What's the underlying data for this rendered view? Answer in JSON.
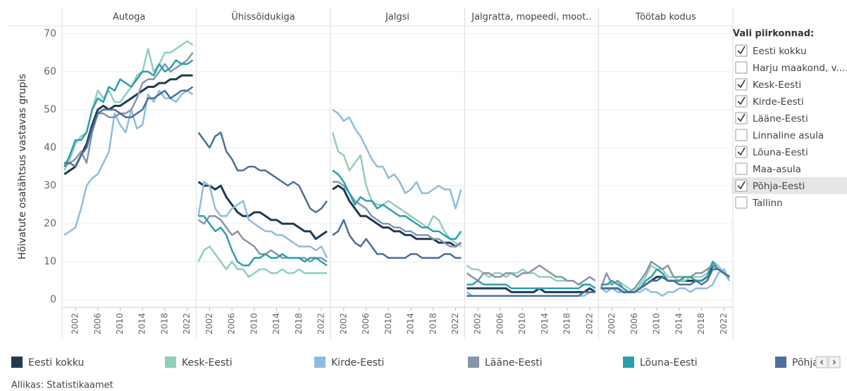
{
  "chart_data": [
    {
      "type": "line",
      "title": "Autoga",
      "ylabel": "Hõivatute osatähtsus vastavas grupis",
      "x": [
        2000,
        2001,
        2002,
        2003,
        2004,
        2005,
        2006,
        2007,
        2008,
        2009,
        2010,
        2011,
        2012,
        2013,
        2014,
        2015,
        2016,
        2017,
        2018,
        2019,
        2020,
        2021,
        2022,
        2023
      ],
      "xlim": [
        1999.6,
        2023.6
      ],
      "xticks": [
        2002,
        2006,
        2010,
        2014,
        2018,
        2022
      ],
      "ylim": [
        -2,
        72
      ],
      "yticks": [
        0,
        10,
        20,
        30,
        40,
        50,
        60,
        70
      ],
      "grid": true,
      "series": [
        {
          "name": "Eesti kokku",
          "color": "#1f3a52",
          "values": [
            33,
            34,
            35,
            38,
            41,
            46,
            50,
            51,
            50,
            51,
            51,
            52,
            53,
            54,
            55,
            56,
            56,
            57,
            57,
            58,
            58,
            59,
            59,
            59
          ]
        },
        {
          "name": "Kesk-Eesti",
          "color": "#8fd0b8",
          "values": [
            34,
            37,
            41,
            43,
            44,
            50,
            55,
            53,
            55,
            52,
            52,
            54,
            56,
            59,
            60,
            66,
            60,
            62,
            65,
            65,
            66,
            67,
            68,
            67
          ]
        },
        {
          "name": "Kirde-Eesti",
          "color": "#8fbcde",
          "values": [
            17,
            18,
            19,
            24,
            30,
            32,
            33,
            36,
            39,
            49,
            46,
            44,
            50,
            45,
            46,
            54,
            52,
            55,
            53,
            53,
            52,
            54,
            55,
            54
          ]
        },
        {
          "name": "Lääne-Eesti",
          "color": "#8596a8",
          "values": [
            35,
            36,
            37,
            39,
            36,
            44,
            49,
            49,
            48,
            48,
            49,
            49,
            50,
            53,
            57,
            58,
            58,
            60,
            62,
            60,
            61,
            62,
            63,
            65
          ]
        },
        {
          "name": "Lõuna-Eesti",
          "color": "#2a9fae",
          "values": [
            35,
            38,
            42,
            42,
            44,
            50,
            53,
            52,
            56,
            55,
            58,
            57,
            56,
            58,
            60,
            60,
            59,
            62,
            60,
            61,
            63,
            62,
            62,
            63
          ]
        },
        {
          "name": "Põhja-Eesti",
          "color": "#4a6f9c",
          "values": [
            36,
            36,
            35,
            38,
            40,
            45,
            49,
            50,
            50,
            50,
            49,
            48,
            48,
            49,
            50,
            53,
            53,
            54,
            55,
            53,
            54,
            55,
            55,
            56
          ]
        }
      ]
    },
    {
      "type": "line",
      "title": "Ühissõidukiga",
      "x": [
        2000,
        2001,
        2002,
        2003,
        2004,
        2005,
        2006,
        2007,
        2008,
        2009,
        2010,
        2011,
        2012,
        2013,
        2014,
        2015,
        2016,
        2017,
        2018,
        2019,
        2020,
        2021,
        2022,
        2023
      ],
      "xlim": [
        1999.6,
        2023.6
      ],
      "xticks": [
        2002,
        2006,
        2010,
        2014,
        2018,
        2022
      ],
      "ylim": [
        -2,
        72
      ],
      "yticks": [
        0,
        10,
        20,
        30,
        40,
        50,
        60,
        70
      ],
      "grid": true,
      "series": [
        {
          "name": "Eesti kokku",
          "color": "#1f3a52",
          "values": [
            31,
            30,
            30,
            29,
            30,
            27,
            25,
            23,
            22,
            22,
            23,
            23,
            22,
            21,
            21,
            20,
            20,
            20,
            19,
            18,
            18,
            16,
            17,
            18
          ]
        },
        {
          "name": "Kesk-Eesti",
          "color": "#8fd0b8",
          "values": [
            10,
            13,
            14,
            12,
            10,
            8,
            10,
            8,
            8,
            6,
            7,
            8,
            8,
            7,
            7,
            8,
            7,
            7,
            8,
            7,
            7,
            7,
            7,
            7
          ]
        },
        {
          "name": "Kirde-Eesti",
          "color": "#8fbcde",
          "values": [
            22,
            31,
            30,
            24,
            22,
            22,
            24,
            25,
            26,
            21,
            20,
            19,
            18,
            18,
            17,
            17,
            16,
            15,
            14,
            14,
            14,
            13,
            14,
            11
          ]
        },
        {
          "name": "Lääne-Eesti",
          "color": "#8596a8",
          "values": [
            21,
            20,
            22,
            22,
            21,
            19,
            17,
            18,
            16,
            15,
            14,
            12,
            12,
            13,
            12,
            11,
            11,
            11,
            11,
            11,
            10,
            11,
            11,
            10
          ]
        },
        {
          "name": "Lõuna-Eesti",
          "color": "#2a9fae",
          "values": [
            22,
            22,
            20,
            18,
            19,
            17,
            13,
            10,
            9,
            9,
            11,
            11,
            12,
            11,
            11,
            12,
            11,
            11,
            11,
            10,
            11,
            11,
            10,
            9
          ]
        },
        {
          "name": "Põhja-Eesti",
          "color": "#4a6f9c",
          "values": [
            44,
            42,
            40,
            43,
            44,
            39,
            37,
            34,
            34,
            35,
            35,
            34,
            34,
            33,
            32,
            31,
            30,
            31,
            30,
            27,
            24,
            23,
            24,
            26
          ]
        }
      ]
    },
    {
      "type": "line",
      "title": "Jalgsi",
      "x": [
        2000,
        2001,
        2002,
        2003,
        2004,
        2005,
        2006,
        2007,
        2008,
        2009,
        2010,
        2011,
        2012,
        2013,
        2014,
        2015,
        2016,
        2017,
        2018,
        2019,
        2020,
        2021,
        2022,
        2023
      ],
      "xlim": [
        1999.6,
        2023.6
      ],
      "xticks": [
        2002,
        2006,
        2010,
        2014,
        2018,
        2022
      ],
      "ylim": [
        -2,
        72
      ],
      "yticks": [
        0,
        10,
        20,
        30,
        40,
        50,
        60,
        70
      ],
      "grid": true,
      "series": [
        {
          "name": "Eesti kokku",
          "color": "#1f3a52",
          "values": [
            29,
            30,
            29,
            26,
            24,
            22,
            22,
            21,
            20,
            19,
            19,
            18,
            18,
            17,
            17,
            16,
            16,
            16,
            16,
            15,
            15,
            15,
            14,
            15
          ]
        },
        {
          "name": "Kesk-Eesti",
          "color": "#8fd0b8",
          "values": [
            44,
            39,
            38,
            34,
            36,
            38,
            30,
            26,
            25,
            25,
            26,
            25,
            24,
            23,
            22,
            21,
            20,
            19,
            22,
            21,
            18,
            16,
            15,
            14
          ]
        },
        {
          "name": "Kirde-Eesti",
          "color": "#8fbcde",
          "values": [
            50,
            49,
            47,
            48,
            45,
            43,
            40,
            37,
            35,
            35,
            32,
            33,
            31,
            28,
            29,
            31,
            28,
            28,
            29,
            30,
            29,
            29,
            24,
            29
          ]
        },
        {
          "name": "Lääne-Eesti",
          "color": "#8596a8",
          "values": [
            31,
            31,
            30,
            28,
            26,
            25,
            24,
            22,
            21,
            20,
            20,
            19,
            19,
            18,
            18,
            17,
            17,
            17,
            16,
            16,
            15,
            14,
            14,
            15
          ]
        },
        {
          "name": "Lõuna-Eesti",
          "color": "#2a9fae",
          "values": [
            34,
            33,
            31,
            28,
            25,
            27,
            26,
            26,
            24,
            25,
            24,
            23,
            22,
            22,
            21,
            20,
            19,
            19,
            18,
            18,
            17,
            16,
            16,
            18
          ]
        },
        {
          "name": "Põhja-Eesti",
          "color": "#4a6f9c",
          "values": [
            17,
            18,
            21,
            17,
            15,
            14,
            16,
            14,
            12,
            12,
            11,
            11,
            11,
            11,
            12,
            12,
            11,
            11,
            11,
            11,
            12,
            12,
            11,
            11
          ]
        }
      ]
    },
    {
      "type": "line",
      "title": "Jalgratta, mopeedi, moot..",
      "x": [
        2000,
        2001,
        2002,
        2003,
        2004,
        2005,
        2006,
        2007,
        2008,
        2009,
        2010,
        2011,
        2012,
        2013,
        2014,
        2015,
        2016,
        2017,
        2018,
        2019,
        2020,
        2021,
        2022,
        2023
      ],
      "xlim": [
        1999.6,
        2023.6
      ],
      "xticks": [
        2002,
        2006,
        2010,
        2014,
        2018,
        2022
      ],
      "ylim": [
        -2,
        72
      ],
      "yticks": [
        0,
        10,
        20,
        30,
        40,
        50,
        60,
        70
      ],
      "grid": true,
      "series": [
        {
          "name": "Eesti kokku",
          "color": "#1f3a52",
          "values": [
            3,
            3,
            3,
            3,
            3,
            3,
            3,
            3,
            2,
            2,
            2,
            2,
            2,
            3,
            2,
            2,
            2,
            2,
            2,
            2,
            2,
            2,
            3,
            2
          ]
        },
        {
          "name": "Kesk-Eesti",
          "color": "#8fd0b8",
          "values": [
            9,
            8,
            8,
            7,
            6,
            7,
            7,
            6,
            7,
            7,
            8,
            7,
            7,
            6,
            6,
            6,
            5,
            5,
            5,
            5,
            4,
            4,
            4,
            3
          ]
        },
        {
          "name": "Kirde-Eesti",
          "color": "#8fbcde",
          "values": [
            2,
            1,
            1,
            1,
            1,
            1,
            1,
            1,
            1,
            1,
            1,
            1,
            1,
            1,
            1,
            1,
            1,
            1,
            1,
            1,
            1,
            1,
            2,
            2
          ]
        },
        {
          "name": "Lääne-Eesti",
          "color": "#8596a8",
          "values": [
            7,
            6,
            5,
            7,
            7,
            6,
            6,
            7,
            7,
            6,
            7,
            7,
            8,
            9,
            8,
            7,
            6,
            6,
            5,
            5,
            4,
            5,
            6,
            5
          ]
        },
        {
          "name": "Lõuna-Eesti",
          "color": "#2a9fae",
          "values": [
            4,
            4,
            5,
            4,
            4,
            4,
            4,
            4,
            3,
            3,
            3,
            3,
            3,
            3,
            3,
            3,
            3,
            3,
            3,
            3,
            3,
            4,
            4,
            3
          ]
        },
        {
          "name": "Põhja-Eesti",
          "color": "#4a6f9c",
          "values": [
            1,
            1,
            1,
            1,
            1,
            1,
            1,
            1,
            1,
            1,
            1,
            1,
            1,
            1,
            1,
            1,
            1,
            1,
            1,
            1,
            1,
            2,
            2,
            2
          ]
        }
      ]
    },
    {
      "type": "line",
      "title": "Töötab kodus",
      "x": [
        2000,
        2001,
        2002,
        2003,
        2004,
        2005,
        2006,
        2007,
        2008,
        2009,
        2010,
        2011,
        2012,
        2013,
        2014,
        2015,
        2016,
        2017,
        2018,
        2019,
        2020,
        2021,
        2022,
        2023
      ],
      "xlim": [
        1999.6,
        2023.6
      ],
      "xticks": [
        2002,
        2006,
        2010,
        2014,
        2018,
        2022
      ],
      "ylim": [
        -2,
        72
      ],
      "yticks": [
        0,
        10,
        20,
        30,
        40,
        50,
        60,
        70
      ],
      "grid": true,
      "series": [
        {
          "name": "Eesti kokku",
          "color": "#1f3a52",
          "values": [
            3,
            3,
            3,
            3,
            2,
            2,
            2,
            3,
            4,
            5,
            6,
            6,
            5,
            5,
            5,
            5,
            5,
            5,
            5,
            6,
            9,
            8,
            7,
            6
          ]
        },
        {
          "name": "Kesk-Eesti",
          "color": "#8fd0b8",
          "values": [
            4,
            4,
            4,
            5,
            4,
            3,
            2,
            4,
            6,
            9,
            8,
            8,
            6,
            6,
            5,
            5,
            6,
            6,
            6,
            7,
            10,
            9,
            7,
            5
          ]
        },
        {
          "name": "Kirde-Eesti",
          "color": "#8fbcde",
          "values": [
            3,
            2,
            3,
            2,
            2,
            2,
            2,
            2,
            3,
            2,
            2,
            1,
            2,
            2,
            3,
            3,
            2,
            3,
            3,
            3,
            4,
            7,
            8,
            5
          ]
        },
        {
          "name": "Lääne-Eesti",
          "color": "#8596a8",
          "values": [
            3,
            7,
            4,
            5,
            3,
            2,
            3,
            5,
            7,
            10,
            9,
            8,
            9,
            6,
            6,
            6,
            6,
            7,
            7,
            8,
            9,
            8,
            7,
            6
          ]
        },
        {
          "name": "Lõuna-Eesti",
          "color": "#2a9fae",
          "values": [
            4,
            4,
            5,
            4,
            3,
            2,
            2,
            3,
            5,
            6,
            8,
            7,
            5,
            5,
            5,
            6,
            6,
            5,
            5,
            6,
            10,
            8,
            7,
            6
          ]
        },
        {
          "name": "Põhja-Eesti",
          "color": "#4a6f9c",
          "values": [
            3,
            3,
            3,
            3,
            2,
            2,
            2,
            3,
            4,
            5,
            5,
            6,
            5,
            5,
            4,
            4,
            4,
            5,
            4,
            5,
            8,
            8,
            7,
            6
          ]
        }
      ]
    }
  ],
  "filter": {
    "title": "Vali piirkonnad:",
    "items": [
      {
        "label": "Eesti kokku",
        "checked": true
      },
      {
        "label": "Harju maakond, v....",
        "checked": false
      },
      {
        "label": "Kesk-Eesti",
        "checked": true
      },
      {
        "label": "Kirde-Eesti",
        "checked": true
      },
      {
        "label": "Lääne-Eesti",
        "checked": true
      },
      {
        "label": "Linnaline asula",
        "checked": false
      },
      {
        "label": "Lõuna-Eesti",
        "checked": true
      },
      {
        "label": "Maa-asula",
        "checked": false
      },
      {
        "label": "Põhja-Eesti",
        "checked": true
      },
      {
        "label": "Tallinn",
        "checked": false
      }
    ]
  },
  "source": "Allikas: Statistikaamet"
}
